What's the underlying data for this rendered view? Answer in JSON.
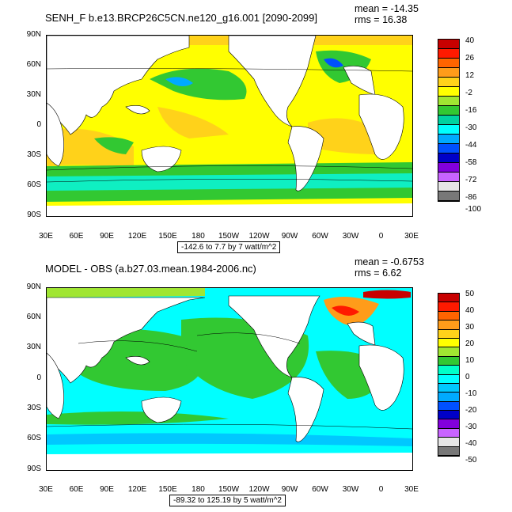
{
  "chart_data": [
    {
      "type": "heatmap",
      "title": "SENH_F b.e13.BRCP26C5CN.ne120_g16.001 [2090-2099]",
      "stats": {
        "mean": "mean = -14.35",
        "rms": "rms = 16.38"
      },
      "range_label": "-142.6 to 7.7 by 7 watt/m^2",
      "x_tick_labels": [
        "30E",
        "60E",
        "90E",
        "120E",
        "150E",
        "180",
        "150W",
        "120W",
        "90W",
        "60W",
        "30W",
        "0",
        "30E"
      ],
      "y_tick_labels": [
        "90N",
        "60N",
        "30N",
        "0",
        "30S",
        "60S",
        "90S"
      ],
      "colorbar": {
        "labels": [
          "40",
          "26",
          "12",
          "-2",
          "-16",
          "-30",
          "-44",
          "-58",
          "-72",
          "-86",
          "-100"
        ],
        "colors": [
          "#c80000",
          "#ff1a00",
          "#ff6400",
          "#ff9c1a",
          "#ffd21a",
          "#ffff00",
          "#a0e632",
          "#32c832",
          "#00d2a0",
          "#00ffff",
          "#00aaff",
          "#0050ff",
          "#0000c8",
          "#8200dc",
          "#c864ff",
          "#e6e6e6",
          "#787878"
        ]
      },
      "field_colors": {
        "dominant": "#ffff00",
        "warm": "#ffd21a",
        "cool": "#32c832",
        "cold": "#00ffff",
        "land": "#ffffff"
      }
    },
    {
      "type": "heatmap",
      "title": "MODEL - OBS (a.b27.03.mean.1984-2006.nc)",
      "stats": {
        "mean": "mean = -0.6753",
        "rms": "rms = 6.62"
      },
      "range_label": "-89.32 to 125.19 by 5 watt/m^2",
      "x_tick_labels": [
        "30E",
        "60E",
        "90E",
        "120E",
        "150E",
        "180",
        "150W",
        "120W",
        "90W",
        "60W",
        "30W",
        "0",
        "30E"
      ],
      "y_tick_labels": [
        "90N",
        "60N",
        "30N",
        "0",
        "30S",
        "60S",
        "90S"
      ],
      "colorbar": {
        "labels": [
          "50",
          "40",
          "30",
          "20",
          "10",
          "0",
          "-10",
          "-20",
          "-30",
          "-40",
          "-50"
        ],
        "colors": [
          "#c80000",
          "#ff1a00",
          "#ff6400",
          "#ff9c1a",
          "#ffd21a",
          "#ffff00",
          "#a0e632",
          "#32c832",
          "#00ffc8",
          "#00ffff",
          "#00c8ff",
          "#00aaff",
          "#0050ff",
          "#0000c8",
          "#8200dc",
          "#c864ff",
          "#e6e6e6",
          "#787878"
        ]
      },
      "field_colors": {
        "dominant": "#00ffff",
        "warm": "#32c832",
        "cool": "#00c8ff",
        "hot": "#ff1a00",
        "land": "#ffffff"
      }
    }
  ]
}
